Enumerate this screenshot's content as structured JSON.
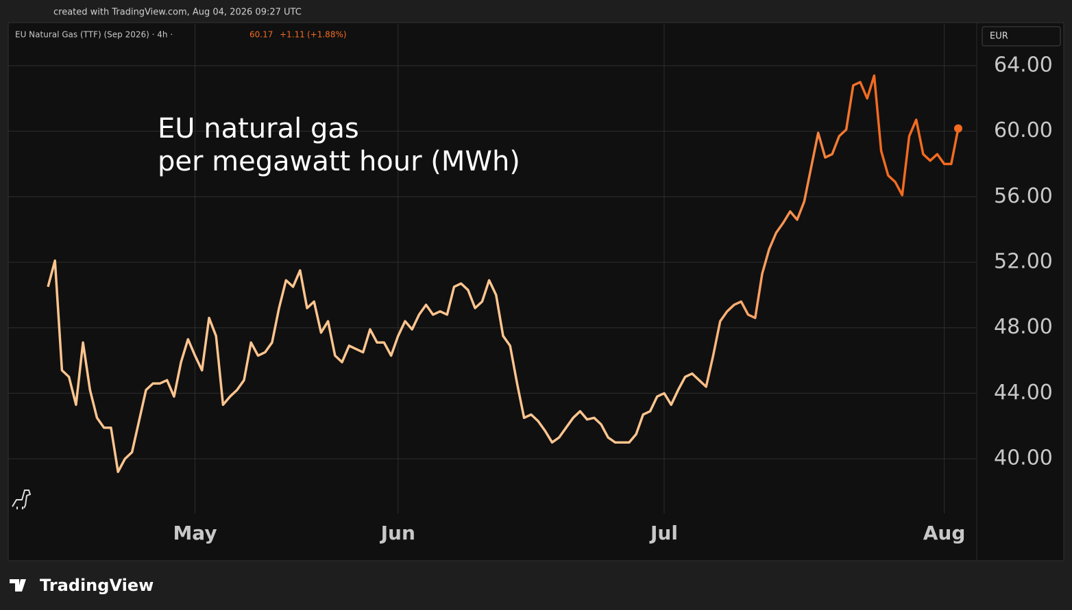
{
  "header": {
    "watermark": "created with TradingView.com, Aug 04, 2026 09:27 UTC",
    "symbol": "EU Natural Gas (TTF) (Sep 2026) · 4h ·",
    "last": "60.17",
    "change": "+1.11",
    "change_pct": "(+1.88%)",
    "currency": "EUR"
  },
  "footer": {
    "logo": "TradingView"
  },
  "chart_data": {
    "type": "line",
    "annotation": [
      "EU natural gas",
      "per megawatt hour (MWh)"
    ],
    "categories": [
      null,
      null,
      null,
      null,
      null,
      null,
      null,
      null,
      null,
      null,
      null,
      null,
      null,
      null,
      null,
      null,
      null,
      null,
      null,
      null,
      null,
      "May",
      null,
      null,
      null,
      null,
      null,
      null,
      null,
      null,
      null,
      null,
      null,
      null,
      null,
      null,
      null,
      null,
      null,
      null,
      null,
      null,
      null,
      null,
      null,
      null,
      null,
      null,
      null,
      null,
      "Jun",
      null,
      null,
      null,
      null,
      null,
      null,
      null,
      null,
      null,
      null,
      null,
      null,
      null,
      null,
      null,
      null,
      null,
      null,
      null,
      null,
      null,
      null,
      null,
      null,
      null,
      null,
      null,
      null,
      null,
      null,
      null,
      null,
      null,
      null,
      null,
      null,
      null,
      "Jul",
      null,
      null,
      null,
      null,
      null,
      null,
      null,
      null,
      null,
      null,
      null,
      null,
      null,
      null,
      null,
      null,
      null,
      null,
      null,
      null,
      null,
      null,
      null,
      null,
      null,
      null,
      null,
      null,
      null,
      null,
      null,
      null,
      null,
      null,
      null,
      null,
      null,
      null,
      null,
      "Aug",
      null,
      null
    ],
    "series": [
      {
        "name": "EU Natural Gas (TTF)",
        "color": "#f26b21",
        "color_start": "#ffc58f",
        "values": [
          50.5,
          52.1,
          45.4,
          45.0,
          43.3,
          47.1,
          44.2,
          42.5,
          41.9,
          41.9,
          39.2,
          40.0,
          40.4,
          42.3,
          44.2,
          44.6,
          44.6,
          44.8,
          43.8,
          45.9,
          47.3,
          46.3,
          45.4,
          48.6,
          47.5,
          43.3,
          43.8,
          44.2,
          44.8,
          47.1,
          46.3,
          46.5,
          47.1,
          49.2,
          50.9,
          50.5,
          51.5,
          49.2,
          49.6,
          47.7,
          48.4,
          46.3,
          45.9,
          46.9,
          46.7,
          46.5,
          47.9,
          47.1,
          47.1,
          46.3,
          47.5,
          48.4,
          47.9,
          48.8,
          49.4,
          48.8,
          49.0,
          48.8,
          50.5,
          50.7,
          50.3,
          49.2,
          49.6,
          50.9,
          50.0,
          47.5,
          46.9,
          44.6,
          42.5,
          42.7,
          42.3,
          41.7,
          41.0,
          41.3,
          41.9,
          42.5,
          42.9,
          42.4,
          42.5,
          42.1,
          41.3,
          41.0,
          41.0,
          41.0,
          41.5,
          42.7,
          42.9,
          43.8,
          44.0,
          43.3,
          44.2,
          45.0,
          45.2,
          44.8,
          44.4,
          46.3,
          48.4,
          49.0,
          49.4,
          49.6,
          48.8,
          48.6,
          51.3,
          52.8,
          53.8,
          54.4,
          55.1,
          54.6,
          55.7,
          57.8,
          59.9,
          58.4,
          58.6,
          59.7,
          60.1,
          62.8,
          63.0,
          62.0,
          63.4,
          58.8,
          57.3,
          56.9,
          56.1,
          59.7,
          60.7,
          58.6,
          58.2,
          58.6,
          58.0,
          58.0,
          60.17
        ]
      }
    ],
    "ylim": [
      36.66,
      66.55
    ],
    "yticks": [
      {
        "value": 40,
        "label": "40.00"
      },
      {
        "value": 44,
        "label": "44.00"
      },
      {
        "value": 48,
        "label": "48.00"
      },
      {
        "value": 52,
        "label": "52.00"
      },
      {
        "value": 56,
        "label": "56.00"
      },
      {
        "value": 60,
        "label": "60.00"
      },
      {
        "value": 64,
        "label": "64.00"
      }
    ],
    "grid": true
  }
}
